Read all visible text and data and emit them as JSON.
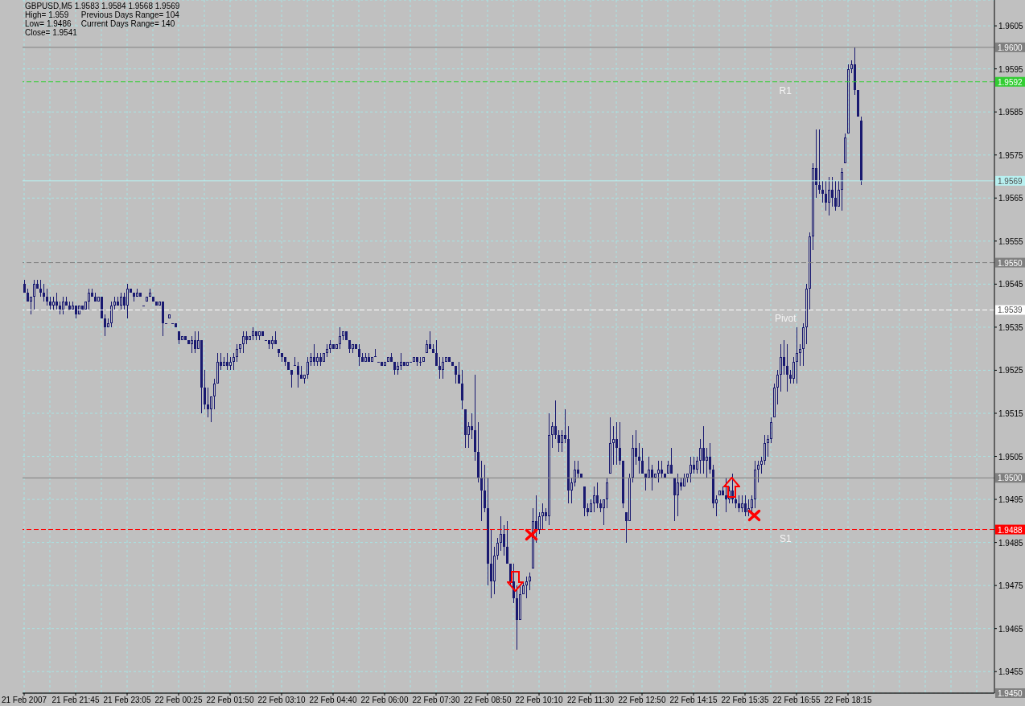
{
  "chart_data": {
    "type": "candlestick",
    "title": "GBPUSD,M5 1.9583 1.9584 1.9568 1.9569",
    "annotations": [
      "High= 1.959",
      "Previous Days Range= 104",
      "Low= 1.9486",
      "Current Days Range= 140",
      "Close= 1.9541",
      {
        "text": "1.9600",
        "y": 1.96
      },
      {
        "text": "1.9592",
        "y": 1.9592
      },
      {
        "text": "1.9569",
        "y": 1.9569
      },
      {
        "text": "1.9550",
        "y": 1.955
      },
      {
        "text": "1.9539",
        "y": 1.9539
      },
      {
        "text": "1.9500",
        "y": 1.95
      },
      {
        "text": "1.9488",
        "y": 1.9488
      },
      {
        "text": "1.9450",
        "y": 1.945
      }
    ],
    "categories": [
      "21 Feb 2007",
      null,
      null,
      null,
      null,
      null,
      null,
      null,
      null,
      null,
      null,
      null,
      null,
      null,
      null,
      null,
      "21 Feb 21:45",
      null,
      null,
      null,
      null,
      null,
      null,
      null,
      null,
      null,
      null,
      null,
      null,
      null,
      null,
      null,
      "21 Feb 23:05",
      null,
      null,
      null,
      null,
      null,
      null,
      null,
      null,
      null,
      null,
      null,
      null,
      null,
      null,
      null,
      "22 Feb 00:25",
      null,
      null,
      null,
      null,
      null,
      null,
      null,
      null,
      null,
      null,
      null,
      null,
      null,
      null,
      null,
      "22 Feb 01:50",
      null,
      null,
      null,
      null,
      null,
      null,
      null,
      null,
      null,
      null,
      null,
      null,
      null,
      null,
      null,
      "22 Feb 03:10",
      null,
      null,
      null,
      null,
      null,
      null,
      null,
      null,
      null,
      null,
      null,
      null,
      null,
      null,
      null,
      "22 Feb 04:40",
      null,
      null,
      null,
      null,
      null,
      null,
      null,
      null,
      null,
      null,
      null,
      null,
      null,
      null,
      null,
      "22 Feb 06:00",
      null,
      null,
      null,
      null,
      null,
      null,
      null,
      null,
      null,
      null,
      null,
      null,
      null,
      null,
      null,
      "22 Feb 07:30",
      null,
      null,
      null,
      null,
      null,
      null,
      null,
      null,
      null,
      null,
      null,
      null,
      null,
      null,
      null,
      "22 Feb 08:50",
      null,
      null,
      null,
      null,
      null,
      null,
      null,
      null,
      null,
      null,
      null,
      null,
      null,
      null,
      null,
      "22 Feb 10:10",
      null,
      null,
      null,
      null,
      null,
      null,
      null,
      null,
      null,
      null,
      null,
      null,
      null,
      null,
      null,
      "22 Feb 11:30",
      null,
      null,
      null,
      null,
      null,
      null,
      null,
      null,
      null,
      null,
      null,
      null,
      null,
      null,
      null,
      "22 Feb 12:50",
      null,
      null,
      null,
      null,
      null,
      null,
      null,
      null,
      null,
      null,
      null,
      null,
      null,
      null,
      null,
      "22 Feb 14:15",
      null,
      null,
      null,
      null,
      null,
      null,
      null,
      null,
      null,
      null,
      null,
      null,
      null,
      null,
      null,
      "22 Feb 15:35",
      null,
      null,
      null,
      null,
      null,
      null,
      null,
      null,
      null,
      null,
      null,
      null,
      null,
      null,
      null,
      "22 Feb 16:55",
      null,
      null,
      null,
      null,
      null,
      null,
      null,
      null,
      null,
      null,
      null,
      null,
      null,
      null,
      null,
      "22 Feb 18:15",
      null,
      null,
      null,
      null,
      null,
      null,
      null,
      null,
      null,
      null,
      null,
      null,
      null,
      null,
      null,
      null,
      null,
      null,
      null,
      null,
      null,
      null,
      null,
      null,
      null,
      null,
      null,
      null,
      null,
      null,
      null,
      null,
      null,
      null,
      null,
      null,
      null,
      null,
      null,
      null,
      null,
      null,
      null,
      null,
      null
    ],
    "ohlc": [
      [
        1.9545,
        1.9546,
        1.9543,
        1.9543
      ],
      [
        1.9543,
        1.9544,
        1.9541,
        1.9541
      ],
      [
        1.9541,
        1.9542,
        1.9538,
        1.9542
      ],
      [
        1.9542,
        1.9546,
        1.9539,
        1.9545
      ],
      [
        1.9545,
        1.9546,
        1.9544,
        1.9544
      ],
      [
        1.9544,
        1.9546,
        1.9542,
        1.9543
      ],
      [
        1.9543,
        1.9545,
        1.9541,
        1.9542
      ],
      [
        1.9542,
        1.9544,
        1.954,
        1.9541
      ],
      [
        1.9541,
        1.9542,
        1.9539,
        1.954
      ],
      [
        1.954,
        1.9542,
        1.9539,
        1.9541
      ],
      [
        1.9541,
        1.9543,
        1.9539,
        1.954
      ],
      [
        1.954,
        1.9541,
        1.9538,
        1.9539
      ],
      [
        1.9539,
        1.9542,
        1.9538,
        1.9541
      ],
      [
        1.9541,
        1.9542,
        1.954,
        1.954
      ],
      [
        1.954,
        1.9541,
        1.9539,
        1.9539
      ],
      [
        1.9539,
        1.9541,
        1.9539,
        1.954
      ],
      [
        1.954,
        1.954,
        1.9537,
        1.9538
      ],
      [
        1.9538,
        1.954,
        1.9538,
        1.954
      ],
      [
        1.954,
        1.954,
        1.9539,
        1.9539
      ],
      [
        1.9539,
        1.9541,
        1.9539,
        1.9541
      ],
      [
        1.9541,
        1.9544,
        1.9539,
        1.9543
      ],
      [
        1.9543,
        1.9544,
        1.9542,
        1.9542
      ],
      [
        1.9542,
        1.9543,
        1.9541,
        1.9541
      ],
      [
        1.9541,
        1.9542,
        1.9541,
        1.9542
      ],
      [
        1.9542,
        1.9542,
        1.9537,
        1.9537
      ],
      [
        1.9537,
        1.9538,
        1.9533,
        1.9535
      ],
      [
        1.9535,
        1.9537,
        1.9535,
        1.9536
      ],
      [
        1.9536,
        1.9541,
        1.9535,
        1.954
      ],
      [
        1.954,
        1.9542,
        1.9539,
        1.9541
      ],
      [
        1.9541,
        1.9542,
        1.954,
        1.954
      ],
      [
        1.954,
        1.9543,
        1.9539,
        1.9542
      ],
      [
        1.9542,
        1.9543,
        1.9539,
        1.954
      ],
      [
        1.954,
        1.9545,
        1.9537,
        1.9544
      ],
      [
        1.9544,
        1.9544,
        1.9543,
        1.9543
      ],
      [
        1.9543,
        1.9543,
        1.9541,
        1.9542
      ],
      [
        1.9542,
        1.9544,
        1.9542,
        1.9543
      ],
      [
        1.9543,
        1.9543,
        1.9542,
        1.9542
      ],
      [
        1.954,
        1.954,
        1.954,
        1.954
      ],
      [
        1.9541,
        1.9542,
        1.9541,
        1.9542
      ],
      [
        1.9542,
        1.9544,
        1.9542,
        1.9543
      ],
      [
        1.9542,
        1.9542,
        1.9541,
        1.9541
      ],
      [
        1.9541,
        1.9541,
        1.954,
        1.954
      ],
      [
        1.954,
        1.9541,
        1.954,
        1.9541
      ],
      [
        1.9541,
        1.9541,
        1.9533,
        1.9536
      ],
      [
        1.9536,
        1.9536,
        1.9536,
        1.9536
      ],
      [
        1.9537,
        1.9538,
        1.9537,
        1.9538
      ],
      [
        1.9536,
        1.9536,
        1.9536,
        1.9536
      ],
      [
        1.9536,
        1.9536,
        1.9535,
        1.9535
      ],
      [
        1.9534,
        1.9534,
        1.9531,
        1.9532
      ],
      [
        1.9532,
        1.9533,
        1.9532,
        1.9533
      ],
      [
        1.9533,
        1.9533,
        1.9532,
        1.9532
      ],
      [
        1.9532,
        1.9532,
        1.9531,
        1.9531
      ],
      [
        1.9531,
        1.9533,
        1.9529,
        1.9532
      ],
      [
        1.9532,
        1.9534,
        1.9529,
        1.953
      ],
      [
        1.953,
        1.9534,
        1.953,
        1.9532
      ],
      [
        1.9532,
        1.9532,
        1.9515,
        1.9521
      ],
      [
        1.9521,
        1.9525,
        1.9516,
        1.9517
      ],
      [
        1.9517,
        1.9521,
        1.9514,
        1.9516
      ],
      [
        1.9516,
        1.9519,
        1.9513,
        1.9519
      ],
      [
        1.9519,
        1.9523,
        1.9516,
        1.9522
      ],
      [
        1.9522,
        1.9529,
        1.9522,
        1.9527
      ],
      [
        1.9527,
        1.9529,
        1.9525,
        1.9526
      ],
      [
        1.9526,
        1.9528,
        1.9526,
        1.9527
      ],
      [
        1.9527,
        1.9529,
        1.9525,
        1.9526
      ],
      [
        1.9526,
        1.9528,
        1.9525,
        1.9527
      ],
      [
        1.9527,
        1.9529,
        1.9525,
        1.9528
      ],
      [
        1.9528,
        1.9531,
        1.9527,
        1.953
      ],
      [
        1.953,
        1.9531,
        1.9529,
        1.9531
      ],
      [
        1.9531,
        1.9534,
        1.9529,
        1.9533
      ],
      [
        1.9533,
        1.9534,
        1.9531,
        1.9532
      ],
      [
        1.9532,
        1.9533,
        1.9532,
        1.9533
      ],
      [
        1.9533,
        1.9535,
        1.9532,
        1.9534
      ],
      [
        1.9534,
        1.9534,
        1.9532,
        1.9533
      ],
      [
        1.9533,
        1.9534,
        1.9532,
        1.9534
      ],
      [
        1.9534,
        1.9534,
        1.9533,
        1.9533
      ],
      [
        1.9532,
        1.9532,
        1.9532,
        1.9532
      ],
      [
        1.9532,
        1.9532,
        1.953,
        1.9531
      ],
      [
        1.9531,
        1.9533,
        1.953,
        1.9532
      ],
      [
        1.9532,
        1.9534,
        1.9531,
        1.9531
      ],
      [
        1.953,
        1.953,
        1.9528,
        1.9529
      ],
      [
        1.9529,
        1.9529,
        1.9527,
        1.9528
      ],
      [
        1.9528,
        1.9528,
        1.9526,
        1.9527
      ],
      [
        1.9527,
        1.9527,
        1.9525,
        1.9525
      ],
      [
        1.9525,
        1.9525,
        1.9521,
        1.9524
      ],
      [
        1.9526,
        1.9528,
        1.9526,
        1.9526
      ],
      [
        1.9526,
        1.9527,
        1.9521,
        1.9524
      ],
      [
        1.9524,
        1.9526,
        1.9523,
        1.9523
      ],
      [
        1.9523,
        1.9524,
        1.9522,
        1.9524
      ],
      [
        1.9524,
        1.9528,
        1.9523,
        1.9527
      ],
      [
        1.9527,
        1.9529,
        1.9526,
        1.9528
      ],
      [
        1.9528,
        1.9531,
        1.9526,
        1.9527
      ],
      [
        1.9527,
        1.9529,
        1.9526,
        1.9528
      ],
      [
        1.9528,
        1.9529,
        1.9526,
        1.9527
      ],
      [
        1.9527,
        1.9529,
        1.9527,
        1.9529
      ],
      [
        1.9529,
        1.9531,
        1.9528,
        1.953
      ],
      [
        1.953,
        1.9532,
        1.9529,
        1.9531
      ],
      [
        1.9531,
        1.9531,
        1.953,
        1.953
      ],
      [
        1.953,
        1.9531,
        1.953,
        1.9531
      ],
      [
        1.9531,
        1.9535,
        1.953,
        1.9533
      ],
      [
        1.9533,
        1.9534,
        1.9532,
        1.9534
      ],
      [
        1.9534,
        1.9534,
        1.9532,
        1.9532
      ],
      [
        1.9532,
        1.9532,
        1.9529,
        1.953
      ],
      [
        1.953,
        1.9531,
        1.9529,
        1.9531
      ],
      [
        1.9531,
        1.9531,
        1.953,
        1.953
      ],
      [
        1.953,
        1.9531,
        1.9526,
        1.9528
      ],
      [
        1.9528,
        1.9529,
        1.9527,
        1.9527
      ],
      [
        1.9527,
        1.9529,
        1.9527,
        1.9528
      ],
      [
        1.9528,
        1.9529,
        1.9527,
        1.9527
      ],
      [
        1.9527,
        1.9528,
        1.9527,
        1.9528
      ],
      [
        1.9528,
        1.953,
        1.9528,
        1.9528
      ],
      [
        1.9527,
        1.9527,
        1.9527,
        1.9527
      ],
      [
        1.9527,
        1.9527,
        1.9526,
        1.9526
      ],
      [
        1.9526,
        1.9527,
        1.9526,
        1.9527
      ],
      [
        1.9527,
        1.9528,
        1.9527,
        1.9528
      ],
      [
        1.9528,
        1.9529,
        1.9527,
        1.9527
      ],
      [
        1.9527,
        1.9527,
        1.9524,
        1.9525
      ],
      [
        1.9525,
        1.9527,
        1.9524,
        1.9526
      ],
      [
        1.9526,
        1.9529,
        1.9525,
        1.9527
      ],
      [
        1.9527,
        1.9527,
        1.9526,
        1.9526
      ],
      [
        1.9526,
        1.9527,
        1.9526,
        1.9527
      ],
      [
        1.9527,
        1.9527,
        1.9527,
        1.9527
      ],
      [
        1.9527,
        1.9528,
        1.9527,
        1.9528
      ],
      [
        1.9528,
        1.9528,
        1.9526,
        1.9527
      ],
      [
        1.9527,
        1.9528,
        1.9526,
        1.9527
      ],
      [
        1.9527,
        1.9528,
        1.9527,
        1.9528
      ],
      [
        1.9529,
        1.9532,
        1.9529,
        1.9531
      ],
      [
        1.9531,
        1.9534,
        1.953,
        1.953
      ],
      [
        1.953,
        1.9531,
        1.9529,
        1.9529
      ],
      [
        1.9529,
        1.9532,
        1.9526,
        1.9526
      ],
      [
        1.9526,
        1.9528,
        1.9523,
        1.9525
      ],
      [
        1.9525,
        1.9528,
        1.9523,
        1.9527
      ],
      [
        1.9527,
        1.9528,
        1.9527,
        1.9528
      ],
      [
        1.9528,
        1.9528,
        1.9527,
        1.9527
      ],
      [
        1.9527,
        1.9527,
        1.9526,
        1.9526
      ],
      [
        1.9526,
        1.9526,
        1.9522,
        1.9524
      ],
      [
        1.9524,
        1.9527,
        1.9522,
        1.9522
      ],
      [
        1.9522,
        1.9525,
        1.9516,
        1.9518
      ],
      [
        1.9516,
        1.9516,
        1.9507,
        1.951
      ],
      [
        1.951,
        1.9513,
        1.9507,
        1.9512
      ],
      [
        1.9512,
        1.9515,
        1.9509,
        1.9511
      ],
      [
        1.9511,
        1.9524,
        1.9504,
        1.9506
      ],
      [
        1.9506,
        1.9513,
        1.9499,
        1.95
      ],
      [
        1.95,
        1.9504,
        1.949,
        1.9497
      ],
      [
        1.9497,
        1.9503,
        1.9492,
        1.9493
      ],
      [
        1.9493,
        1.95,
        1.9475,
        1.948
      ],
      [
        1.948,
        1.9488,
        1.9472,
        1.9476
      ],
      [
        1.9476,
        1.9484,
        1.9473,
        1.9482
      ],
      [
        1.9482,
        1.9486,
        1.9481,
        1.9485
      ],
      [
        1.9485,
        1.9491,
        1.9483,
        1.9487
      ],
      [
        1.9487,
        1.9489,
        1.9482,
        1.9484
      ],
      [
        1.9484,
        1.949,
        1.948,
        1.948
      ],
      [
        1.948,
        1.948,
        1.9475,
        1.9476
      ],
      [
        1.9476,
        1.948,
        1.9471,
        1.9472
      ],
      [
        1.9472,
        1.9475,
        1.946,
        1.9467
      ],
      [
        1.9467,
        1.9475,
        1.9467,
        1.9473
      ],
      [
        1.9473,
        1.9476,
        1.9473,
        1.9475
      ],
      [
        1.9475,
        1.9477,
        1.9472,
        1.9476
      ],
      [
        1.9476,
        1.9478,
        1.9474,
        1.9477
      ],
      [
        1.9479,
        1.9493,
        1.9479,
        1.949
      ],
      [
        1.949,
        1.9496,
        1.9485,
        1.9488
      ],
      [
        1.9488,
        1.9492,
        1.9487,
        1.9491
      ],
      [
        1.9491,
        1.9494,
        1.9488,
        1.9492
      ],
      [
        1.9492,
        1.9493,
        1.949,
        1.9491
      ],
      [
        1.9491,
        1.9515,
        1.9489,
        1.951
      ],
      [
        1.951,
        1.9513,
        1.9507,
        1.9512
      ],
      [
        1.9512,
        1.9518,
        1.9509,
        1.951
      ],
      [
        1.951,
        1.9511,
        1.9506,
        1.9508
      ],
      [
        1.9508,
        1.9511,
        1.9506,
        1.951
      ],
      [
        1.951,
        1.9516,
        1.9508,
        1.9509
      ],
      [
        1.9509,
        1.9512,
        1.9494,
        1.9497
      ],
      [
        1.9497,
        1.95,
        1.9494,
        1.9499
      ],
      [
        1.9499,
        1.9504,
        1.9498,
        1.9502
      ],
      [
        1.9502,
        1.9504,
        1.95,
        1.9501
      ],
      [
        1.9501,
        1.9501,
        1.95,
        1.95
      ],
      [
        1.9498,
        1.9498,
        1.9491,
        1.9493
      ],
      [
        1.9493,
        1.9494,
        1.9491,
        1.9492
      ],
      [
        1.9492,
        1.9495,
        1.9492,
        1.9494
      ],
      [
        1.9494,
        1.9498,
        1.9492,
        1.9496
      ],
      [
        1.9496,
        1.9499,
        1.9493,
        1.9494
      ],
      [
        1.9494,
        1.9495,
        1.9492,
        1.9493
      ],
      [
        1.9493,
        1.9495,
        1.9489,
        1.9495
      ],
      [
        1.9495,
        1.95,
        1.9493,
        1.9499
      ],
      [
        1.9501,
        1.9514,
        1.9501,
        1.9508
      ],
      [
        1.9508,
        1.9512,
        1.9503,
        1.9509
      ],
      [
        1.9509,
        1.9513,
        1.9503,
        1.9507
      ],
      [
        1.9507,
        1.9513,
        1.9503,
        1.9504
      ],
      [
        1.9504,
        1.9504,
        1.9493,
        1.9494
      ],
      [
        1.9492,
        1.9492,
        1.9485,
        1.949
      ],
      [
        1.949,
        1.9501,
        1.949,
        1.95
      ],
      [
        1.95,
        1.951,
        1.9499,
        1.9507
      ],
      [
        1.9507,
        1.9511,
        1.9503,
        1.9505
      ],
      [
        1.9505,
        1.9508,
        1.9501,
        1.9504
      ],
      [
        1.9504,
        1.9507,
        1.9501,
        1.9501
      ],
      [
        1.9501,
        1.9501,
        1.9497,
        1.95
      ],
      [
        1.95,
        1.9505,
        1.95,
        1.9502
      ],
      [
        1.9502,
        1.9503,
        1.9497,
        1.95
      ],
      [
        1.95,
        1.9501,
        1.95,
        1.9501
      ],
      [
        1.9501,
        1.9504,
        1.9499,
        1.9502
      ],
      [
        1.9502,
        1.9504,
        1.95,
        1.9501
      ],
      [
        1.9501,
        1.9501,
        1.95,
        1.95
      ],
      [
        1.9501,
        1.9504,
        1.9501,
        1.9503
      ],
      [
        1.9503,
        1.9507,
        1.9501,
        1.9501
      ],
      [
        1.95,
        1.95,
        1.949,
        1.9496
      ],
      [
        1.9496,
        1.9501,
        1.9491,
        1.9499
      ],
      [
        1.9499,
        1.95,
        1.9497,
        1.9498
      ],
      [
        1.9498,
        1.9501,
        1.9498,
        1.95
      ],
      [
        1.95,
        1.9501,
        1.9499,
        1.9501
      ],
      [
        1.9501,
        1.9505,
        1.9499,
        1.9503
      ],
      [
        1.9503,
        1.9505,
        1.9501,
        1.9502
      ],
      [
        1.9502,
        1.9505,
        1.9501,
        1.9504
      ],
      [
        1.9504,
        1.9509,
        1.9501,
        1.9507
      ],
      [
        1.9507,
        1.9512,
        1.9501,
        1.9504
      ],
      [
        1.9504,
        1.9507,
        1.95,
        1.9505
      ],
      [
        1.9505,
        1.9508,
        1.9501,
        1.9502
      ],
      [
        1.9502,
        1.9503,
        1.9493,
        1.9494
      ],
      [
        1.9494,
        1.9496,
        1.9491,
        1.9495
      ],
      [
        1.9496,
        1.9497,
        1.9496,
        1.9497
      ],
      [
        1.9497,
        1.9498,
        1.9496,
        1.9496
      ],
      [
        1.9496,
        1.95,
        1.9492,
        1.9495
      ],
      [
        1.9495,
        1.9498,
        1.9494,
        1.9497
      ],
      [
        1.9497,
        1.9501,
        1.9494,
        1.9495
      ],
      [
        1.9495,
        1.9496,
        1.9493,
        1.9494
      ],
      [
        1.9494,
        1.9496,
        1.9492,
        1.9493
      ],
      [
        1.9493,
        1.9496,
        1.9492,
        1.9494
      ],
      [
        1.9494,
        1.9496,
        1.9491,
        1.9492
      ],
      [
        1.9492,
        1.9495,
        1.9491,
        1.9493
      ],
      [
        1.9493,
        1.9496,
        1.9492,
        1.9495
      ],
      [
        1.9495,
        1.9504,
        1.9493,
        1.9502
      ],
      [
        1.9502,
        1.9504,
        1.9499,
        1.9503
      ],
      [
        1.9503,
        1.9505,
        1.9501,
        1.9504
      ],
      [
        1.9504,
        1.951,
        1.9503,
        1.9508
      ],
      [
        1.9508,
        1.951,
        1.9505,
        1.9509
      ],
      [
        1.9509,
        1.9514,
        1.9508,
        1.9513
      ],
      [
        1.9514,
        1.9522,
        1.9514,
        1.9521
      ],
      [
        1.9521,
        1.9525,
        1.9517,
        1.9524
      ],
      [
        1.9524,
        1.9531,
        1.952,
        1.9528
      ],
      [
        1.9528,
        1.9532,
        1.9524,
        1.9526
      ],
      [
        1.9526,
        1.9531,
        1.952,
        1.9524
      ],
      [
        1.9524,
        1.9525,
        1.9522,
        1.9523
      ],
      [
        1.9523,
        1.9528,
        1.9522,
        1.9527
      ],
      [
        1.9527,
        1.9535,
        1.9522,
        1.9529
      ],
      [
        1.9529,
        1.9531,
        1.9526,
        1.953
      ],
      [
        1.953,
        1.9536,
        1.9526,
        1.9535
      ],
      [
        1.9535,
        1.9545,
        1.9531,
        1.9544
      ],
      [
        1.9544,
        1.9557,
        1.9539,
        1.9556
      ],
      [
        1.9556,
        1.9573,
        1.9553,
        1.9572
      ],
      [
        1.9572,
        1.9581,
        1.9565,
        1.9568
      ],
      [
        1.9568,
        1.9581,
        1.9566,
        1.9567
      ],
      [
        1.9567,
        1.9569,
        1.9564,
        1.9566
      ],
      [
        1.9566,
        1.9569,
        1.9562,
        1.9564
      ],
      [
        1.9564,
        1.957,
        1.9561,
        1.9567
      ],
      [
        1.9567,
        1.957,
        1.9563,
        1.9565
      ],
      [
        1.9565,
        1.9569,
        1.9562,
        1.9563
      ],
      [
        1.9563,
        1.9569,
        1.9563,
        1.9567
      ],
      [
        1.9567,
        1.9572,
        1.9562,
        1.9571
      ],
      [
        1.9573,
        1.958,
        1.9573,
        1.9579
      ],
      [
        1.958,
        1.9596,
        1.958,
        1.9595
      ],
      [
        1.9595,
        1.9597,
        1.9594,
        1.9596
      ],
      [
        1.9596,
        1.96,
        1.9589,
        1.959
      ],
      [
        1.959,
        1.959,
        1.9584,
        1.9584
      ],
      [
        1.9583,
        1.9584,
        1.9568,
        1.9569
      ],
      null,
      null,
      null,
      null,
      null,
      null,
      null,
      null,
      null,
      null,
      null,
      null,
      null,
      null,
      null,
      null,
      null,
      null,
      null,
      null,
      null,
      null,
      null,
      null,
      null,
      null,
      null,
      null,
      null,
      null,
      null,
      null,
      null,
      null,
      null,
      null,
      null,
      null,
      null,
      null,
      null
    ],
    "color": "#191970",
    "ylim": [
      1.945,
      1.9611
    ],
    "yticks": [
      1.9455,
      1.9465,
      1.9475,
      1.9485,
      1.9495,
      1.9505,
      1.9515,
      1.9525,
      1.9535,
      1.9545,
      1.9555,
      1.9565,
      1.9575,
      1.9585,
      1.9595,
      1.9605
    ],
    "grid": true,
    "ref_lines": [
      {
        "axis": "y",
        "value": 1.96,
        "color": "#808080",
        "line_style": "solid"
      },
      {
        "axis": "y",
        "value": 1.9592,
        "label": "R1",
        "color": "#32cd32",
        "line_style": "dashed"
      },
      {
        "axis": "y",
        "value": 1.9569,
        "color": "#b8f0f0",
        "line_style": "solid"
      },
      {
        "axis": "y",
        "value": 1.955,
        "color": "#808080",
        "line_style": "dashed"
      },
      {
        "axis": "y",
        "value": 1.9539,
        "label": "Pivot",
        "color": "#ffffff",
        "line_style": "dashed"
      },
      {
        "axis": "y",
        "value": 1.95,
        "color": "#808080",
        "line_style": "solid"
      },
      {
        "axis": "y",
        "value": 1.9488,
        "label": "S1",
        "color": "#ff0000",
        "line_style": "dashed"
      },
      {
        "axis": "y",
        "value": 1.945,
        "color": "#808080",
        "line_style": "solid"
      }
    ]
  }
}
